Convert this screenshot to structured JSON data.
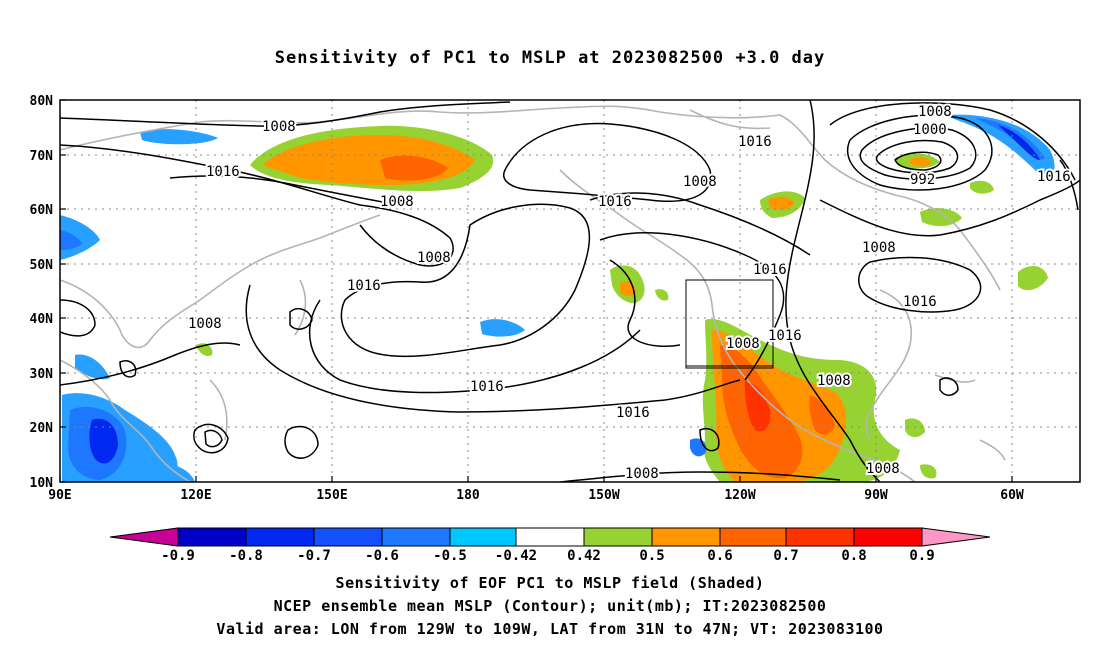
{
  "title": "Sensitivity of PC1 to MSLP at 2023082500 +3.0 day",
  "map": {
    "lat_ticks": [
      "80N",
      "70N",
      "60N",
      "50N",
      "40N",
      "30N",
      "20N",
      "10N"
    ],
    "lon_ticks": [
      "90E",
      "120E",
      "150E",
      "180",
      "150W",
      "120W",
      "90W",
      "60W"
    ],
    "contour_labels": [
      "1008",
      "1016",
      "1008",
      "1016",
      "1008",
      "1016",
      "1008",
      "1016",
      "1008",
      "1016",
      "1008",
      "1016",
      "1008",
      "1016",
      "1008",
      "1000",
      "992",
      "1008",
      "1016",
      "1008",
      "1016"
    ],
    "contour_color": "#000000",
    "coastline_color": "#b4b4b4",
    "grid_style": "dotted",
    "valid_area": {
      "lon_from": "129W",
      "lon_to": "109W",
      "lat_from": "31N",
      "lat_to": "47N"
    }
  },
  "colorbar": {
    "labels": [
      "-0.9",
      "-0.8",
      "-0.7",
      "-0.6",
      "-0.5",
      "-0.42",
      "0.42",
      "0.5",
      "0.6",
      "0.7",
      "0.8",
      "0.9"
    ],
    "colors": [
      "#c80096",
      "#0000c8",
      "#0028f0",
      "#1450ff",
      "#1e78ff",
      "#28a0ff",
      "#00c8ff",
      "#ffffff",
      "#96d232",
      "#ff9600",
      "#ff6400",
      "#ff3200",
      "#ff0000",
      "#ff96c8"
    ]
  },
  "captions": {
    "line1": "Sensitivity of EOF PC1 to MSLP field (Shaded)",
    "line2": "NCEP ensemble mean MSLP (Contour); unit(mb); IT:2023082500",
    "line3": "Valid area: LON from 129W to 109W, LAT from 31N to 47N; VT: 2023083100"
  }
}
